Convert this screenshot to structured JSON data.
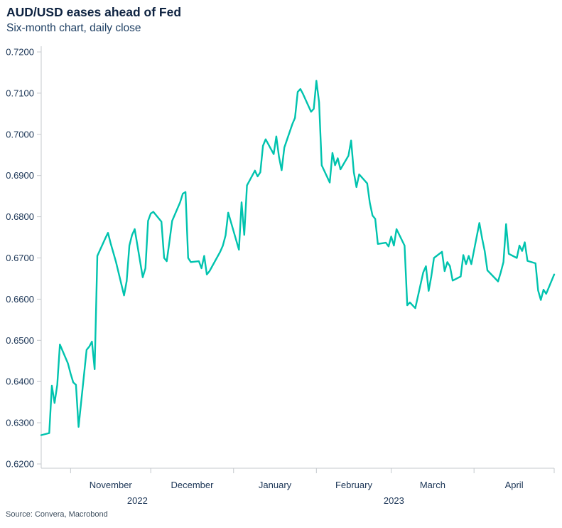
{
  "header": {
    "title": "AUD/USD eases ahead of Fed",
    "subtitle": "Six-month chart, daily close"
  },
  "source": "Source: Convera, Macrobond",
  "colors": {
    "line": "#00C3AE",
    "title_text": "#0d2240",
    "axis_text": "#1b3556",
    "axis_line": "#c4c8cd",
    "background": "#ffffff"
  },
  "chart_data": {
    "type": "line",
    "title": "AUD/USD eases ahead of Fed",
    "subtitle": "Six-month chart, daily close",
    "grid": false,
    "legend": "none",
    "y_axis": {
      "min": 0.62,
      "max": 0.72,
      "step": 0.01,
      "tick_labels": [
        "0.6200",
        "0.6300",
        "0.6400",
        "0.6500",
        "0.6600",
        "0.6700",
        "0.6800",
        "0.6900",
        "0.7000",
        "0.7100",
        "0.7200"
      ]
    },
    "x_axis": {
      "type": "date",
      "range": [
        "2022-10-21",
        "2023-05-01"
      ],
      "month_tick_labels": [
        "November",
        "December",
        "January",
        "February",
        "March",
        "April"
      ],
      "year_labels": [
        "2022",
        "2023"
      ]
    },
    "series": [
      {
        "name": "AUD/USD daily close",
        "points": [
          [
            "2022-10-21",
            0.627
          ],
          [
            "2022-10-24",
            0.6275
          ],
          [
            "2022-10-25",
            0.639
          ],
          [
            "2022-10-26",
            0.6348
          ],
          [
            "2022-10-27",
            0.6392
          ],
          [
            "2022-10-28",
            0.649
          ],
          [
            "2022-10-31",
            0.6444
          ],
          [
            "2022-11-01",
            0.6419
          ],
          [
            "2022-11-02",
            0.6398
          ],
          [
            "2022-11-03",
            0.6392
          ],
          [
            "2022-11-04",
            0.629
          ],
          [
            "2022-11-07",
            0.6477
          ],
          [
            "2022-11-08",
            0.6485
          ],
          [
            "2022-11-09",
            0.6497
          ],
          [
            "2022-11-10",
            0.643
          ],
          [
            "2022-11-11",
            0.6705
          ],
          [
            "2022-11-14",
            0.6748
          ],
          [
            "2022-11-15",
            0.6761
          ],
          [
            "2022-11-16",
            0.6735
          ],
          [
            "2022-11-17",
            0.6713
          ],
          [
            "2022-11-18",
            0.669
          ],
          [
            "2022-11-21",
            0.6609
          ],
          [
            "2022-11-22",
            0.6644
          ],
          [
            "2022-11-23",
            0.673
          ],
          [
            "2022-11-24",
            0.6756
          ],
          [
            "2022-11-25",
            0.677
          ],
          [
            "2022-11-28",
            0.6653
          ],
          [
            "2022-11-29",
            0.6675
          ],
          [
            "2022-11-30",
            0.679
          ],
          [
            "2022-12-01",
            0.6808
          ],
          [
            "2022-12-02",
            0.6812
          ],
          [
            "2022-12-05",
            0.6788
          ],
          [
            "2022-12-06",
            0.67
          ],
          [
            "2022-12-07",
            0.6692
          ],
          [
            "2022-12-08",
            0.674
          ],
          [
            "2022-12-09",
            0.679
          ],
          [
            "2022-12-12",
            0.6835
          ],
          [
            "2022-12-13",
            0.6856
          ],
          [
            "2022-12-14",
            0.686
          ],
          [
            "2022-12-15",
            0.67
          ],
          [
            "2022-12-16",
            0.669
          ],
          [
            "2022-12-19",
            0.6692
          ],
          [
            "2022-12-20",
            0.6675
          ],
          [
            "2022-12-21",
            0.6705
          ],
          [
            "2022-12-22",
            0.666
          ],
          [
            "2022-12-23",
            0.6668
          ],
          [
            "2022-12-27",
            0.6715
          ],
          [
            "2022-12-28",
            0.673
          ],
          [
            "2022-12-29",
            0.6755
          ],
          [
            "2022-12-30",
            0.681
          ],
          [
            "2023-01-03",
            0.672
          ],
          [
            "2023-01-04",
            0.6835
          ],
          [
            "2023-01-05",
            0.6756
          ],
          [
            "2023-01-06",
            0.6876
          ],
          [
            "2023-01-09",
            0.6912
          ],
          [
            "2023-01-10",
            0.6898
          ],
          [
            "2023-01-11",
            0.6908
          ],
          [
            "2023-01-12",
            0.6972
          ],
          [
            "2023-01-13",
            0.6988
          ],
          [
            "2023-01-16",
            0.6952
          ],
          [
            "2023-01-17",
            0.6995
          ],
          [
            "2023-01-18",
            0.6945
          ],
          [
            "2023-01-19",
            0.6913
          ],
          [
            "2023-01-20",
            0.6968
          ],
          [
            "2023-01-23",
            0.7025
          ],
          [
            "2023-01-24",
            0.704
          ],
          [
            "2023-01-25",
            0.7103
          ],
          [
            "2023-01-26",
            0.711
          ],
          [
            "2023-01-27",
            0.7098
          ],
          [
            "2023-01-30",
            0.7055
          ],
          [
            "2023-01-31",
            0.7062
          ],
          [
            "2023-02-01",
            0.713
          ],
          [
            "2023-02-02",
            0.7078
          ],
          [
            "2023-02-03",
            0.6925
          ],
          [
            "2023-02-06",
            0.6883
          ],
          [
            "2023-02-07",
            0.6955
          ],
          [
            "2023-02-08",
            0.6925
          ],
          [
            "2023-02-09",
            0.6942
          ],
          [
            "2023-02-10",
            0.6915
          ],
          [
            "2023-02-13",
            0.6948
          ],
          [
            "2023-02-14",
            0.6985
          ],
          [
            "2023-02-15",
            0.6908
          ],
          [
            "2023-02-16",
            0.6872
          ],
          [
            "2023-02-17",
            0.6903
          ],
          [
            "2023-02-20",
            0.6881
          ],
          [
            "2023-02-21",
            0.6834
          ],
          [
            "2023-02-22",
            0.6803
          ],
          [
            "2023-02-23",
            0.6795
          ],
          [
            "2023-02-24",
            0.6734
          ],
          [
            "2023-02-27",
            0.6737
          ],
          [
            "2023-02-28",
            0.6728
          ],
          [
            "2023-03-01",
            0.6752
          ],
          [
            "2023-03-02",
            0.673
          ],
          [
            "2023-03-03",
            0.677
          ],
          [
            "2023-03-06",
            0.673
          ],
          [
            "2023-03-07",
            0.6585
          ],
          [
            "2023-03-08",
            0.6592
          ],
          [
            "2023-03-09",
            0.6585
          ],
          [
            "2023-03-10",
            0.6578
          ],
          [
            "2023-03-13",
            0.6665
          ],
          [
            "2023-03-14",
            0.668
          ],
          [
            "2023-03-15",
            0.662
          ],
          [
            "2023-03-16",
            0.6655
          ],
          [
            "2023-03-17",
            0.67
          ],
          [
            "2023-03-20",
            0.6715
          ],
          [
            "2023-03-21",
            0.6668
          ],
          [
            "2023-03-22",
            0.669
          ],
          [
            "2023-03-23",
            0.668
          ],
          [
            "2023-03-24",
            0.6645
          ],
          [
            "2023-03-27",
            0.6655
          ],
          [
            "2023-03-28",
            0.6707
          ],
          [
            "2023-03-29",
            0.6685
          ],
          [
            "2023-03-30",
            0.6705
          ],
          [
            "2023-03-31",
            0.6685
          ],
          [
            "2023-04-03",
            0.6785
          ],
          [
            "2023-04-04",
            0.6748
          ],
          [
            "2023-04-05",
            0.6717
          ],
          [
            "2023-04-06",
            0.667
          ],
          [
            "2023-04-10",
            0.6643
          ],
          [
            "2023-04-11",
            0.6665
          ],
          [
            "2023-04-12",
            0.669
          ],
          [
            "2023-04-13",
            0.6782
          ],
          [
            "2023-04-14",
            0.671
          ],
          [
            "2023-04-17",
            0.67
          ],
          [
            "2023-04-18",
            0.673
          ],
          [
            "2023-04-19",
            0.6717
          ],
          [
            "2023-04-20",
            0.6738
          ],
          [
            "2023-04-21",
            0.6693
          ],
          [
            "2023-04-24",
            0.6687
          ],
          [
            "2023-04-25",
            0.6621
          ],
          [
            "2023-04-26",
            0.6598
          ],
          [
            "2023-04-27",
            0.6623
          ],
          [
            "2023-04-28",
            0.6613
          ],
          [
            "2023-05-01",
            0.666
          ]
        ]
      }
    ]
  }
}
